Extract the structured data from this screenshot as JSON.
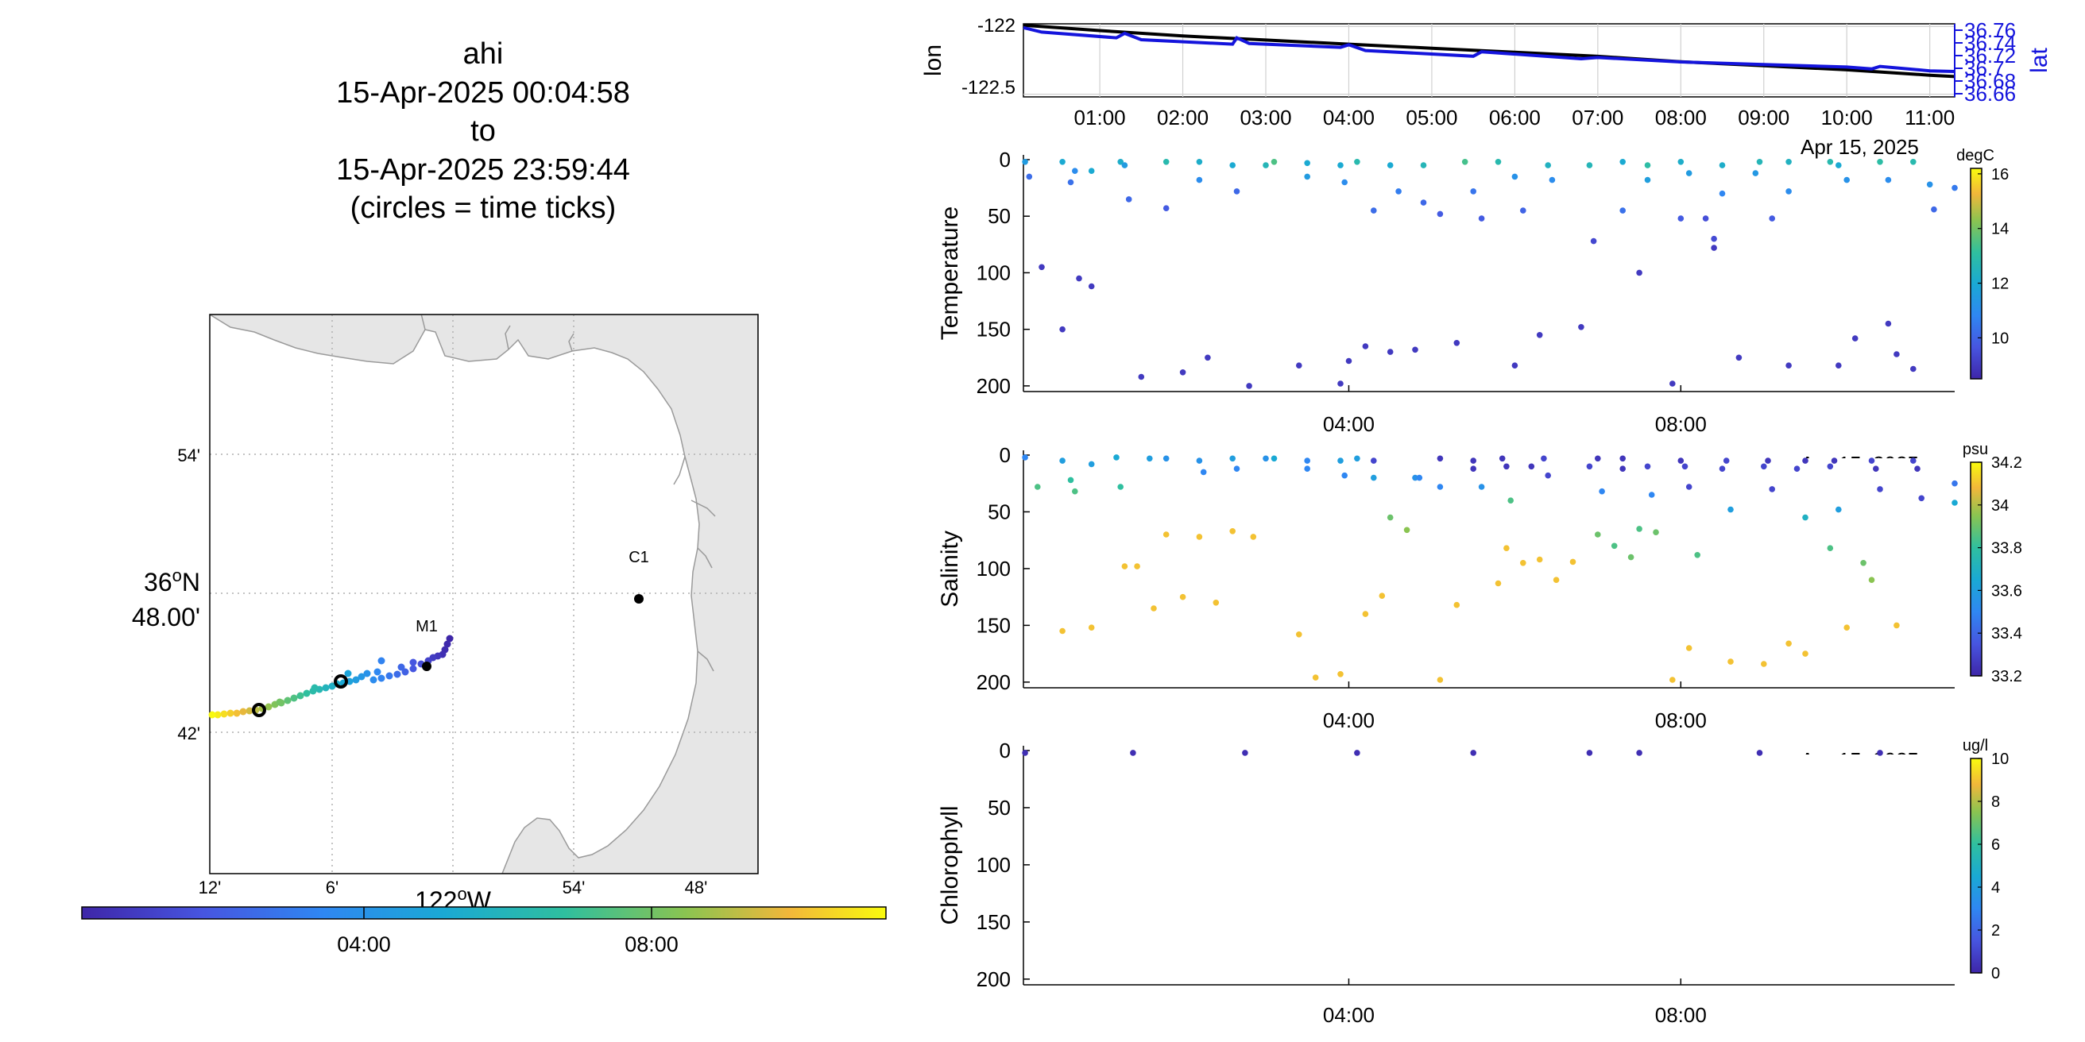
{
  "title": {
    "platform": "ahi",
    "start": "15-Apr-2025 00:04:58",
    "to": "to",
    "end": "15-Apr-2025 23:59:44",
    "note": "(circles = time ticks)"
  },
  "colors": {
    "lon_line": "#000000",
    "lat_line": "#1414dc",
    "land": "#e6e6e6",
    "coast": "#9a9a9a",
    "grid": "#b0b0b0",
    "station": "#000000"
  },
  "map": {
    "lat_ticks": [
      {
        "label": "54'",
        "lat": 36.9
      },
      {
        "label": "36°N 48.00'",
        "line1": "36",
        "sup": "o",
        "line1_end": "N",
        "line2": "48.00'",
        "lat": 36.8
      },
      {
        "label": "42'",
        "lat": 36.7
      }
    ],
    "lon_ticks": [
      {
        "label": "12'",
        "lon": -122.2
      },
      {
        "label": "6'",
        "lon": -122.1
      },
      {
        "label": "122°W",
        "main": "122",
        "sup": "o",
        "end": "W",
        "lon": -122.0
      },
      {
        "label": "54'",
        "lon": -121.9
      },
      {
        "label": "48'",
        "lon": -121.8
      }
    ],
    "stations": [
      {
        "name": "C1",
        "lat": 36.797,
        "lon": -121.847
      },
      {
        "name": "M1",
        "lat": 36.747,
        "lon": -122.022
      }
    ],
    "time_ticks": [
      "04:00",
      "08:00"
    ],
    "colorbar": {
      "range_hours": [
        0,
        24
      ],
      "ticks": [
        "04:00",
        "08:00"
      ]
    }
  },
  "chart_data": [
    {
      "type": "line",
      "title": "",
      "xlabel": "",
      "ylabel": "lon",
      "ylabel_right": "lat",
      "x_ticks": [
        "01:00",
        "02:00",
        "03:00",
        "04:00",
        "05:00",
        "06:00",
        "07:00",
        "08:00",
        "09:00",
        "10:00",
        "11:00"
      ],
      "date_label": "Apr 15, 2025",
      "xlim_hours": [
        0.08,
        11.3
      ],
      "ylim_left": [
        -122.52,
        -121.98
      ],
      "y_ticks_left": [
        -122,
        -122.5
      ],
      "ylim_right": [
        36.655,
        36.77
      ],
      "y_ticks_right": [
        36.76,
        36.74,
        36.72,
        36.7,
        36.68,
        36.66
      ],
      "series": [
        {
          "name": "",
          "axis": "left",
          "x": [
            0.08,
            1,
            2,
            3,
            4,
            5,
            6,
            7,
            8,
            9,
            10,
            11,
            11.3
          ],
          "y": [
            -121.99,
            -122.03,
            -122.07,
            -122.1,
            -122.13,
            -122.16,
            -122.19,
            -122.22,
            -122.26,
            -122.29,
            -122.32,
            -122.36,
            -122.37
          ]
        },
        {
          "name": "",
          "axis": "right",
          "x": [
            0.08,
            0.3,
            1.2,
            1.3,
            1.5,
            2.6,
            2.65,
            2.8,
            3.9,
            4.0,
            4.2,
            5.5,
            5.6,
            6.8,
            7.0,
            8.0,
            9.0,
            10.0,
            10.3,
            10.4,
            11.0,
            11.3
          ],
          "y": [
            36.764,
            36.757,
            36.748,
            36.755,
            36.745,
            36.738,
            36.748,
            36.739,
            36.733,
            36.737,
            36.728,
            36.719,
            36.726,
            36.715,
            36.717,
            36.71,
            36.706,
            36.702,
            36.699,
            36.703,
            36.696,
            36.695
          ]
        }
      ]
    },
    {
      "type": "scatter",
      "title": "",
      "ylabel": "Temperature",
      "xlabel": "",
      "x_ticks": [
        "04:00",
        "08:00"
      ],
      "date_label": "Apr 15, 2025",
      "xlim_hours": [
        0.08,
        11.3
      ],
      "ylim": [
        0,
        205
      ],
      "y_reversed": true,
      "y_ticks": [
        0,
        50,
        100,
        150,
        200
      ],
      "colorbar": {
        "label": "degC",
        "range": [
          8.5,
          16.2
        ],
        "ticks": [
          10,
          12,
          14,
          16
        ]
      },
      "points": [
        [
          0.1,
          2,
          11.5
        ],
        [
          0.15,
          15,
          10.2
        ],
        [
          0.55,
          2,
          12
        ],
        [
          0.65,
          20,
          10.3
        ],
        [
          0.7,
          10,
          11
        ],
        [
          0.9,
          10,
          12
        ],
        [
          1.25,
          2,
          12.2
        ],
        [
          1.3,
          5,
          11.5
        ],
        [
          1.35,
          35,
          10.1
        ],
        [
          1.8,
          2,
          12.8
        ],
        [
          1.8,
          43,
          9.8
        ],
        [
          2.2,
          2,
          12.2
        ],
        [
          2.2,
          18,
          11
        ],
        [
          2.6,
          5,
          12
        ],
        [
          2.65,
          28,
          10.1
        ],
        [
          3.0,
          5,
          12.6
        ],
        [
          3.1,
          2,
          13.5
        ],
        [
          3.5,
          3,
          12
        ],
        [
          3.5,
          15,
          11.5
        ],
        [
          3.9,
          5,
          12
        ],
        [
          3.95,
          20,
          11
        ],
        [
          4.1,
          2,
          12.8
        ],
        [
          4.3,
          45,
          10.2
        ],
        [
          4.5,
          5,
          12
        ],
        [
          4.6,
          28,
          10.6
        ],
        [
          4.9,
          5,
          12.6
        ],
        [
          4.9,
          38,
          10.1
        ],
        [
          5.1,
          48,
          9.8
        ],
        [
          5.4,
          2,
          13.4
        ],
        [
          5.5,
          28,
          10.4
        ],
        [
          5.6,
          52,
          9.8
        ],
        [
          5.8,
          2,
          12.8
        ],
        [
          6.0,
          15,
          11.2
        ],
        [
          6.1,
          45,
          10
        ],
        [
          6.4,
          5,
          12.4
        ],
        [
          6.45,
          18,
          11
        ],
        [
          6.9,
          5,
          12.6
        ],
        [
          6.95,
          72,
          9.3
        ],
        [
          7.3,
          2,
          12
        ],
        [
          7.3,
          45,
          10.3
        ],
        [
          7.6,
          5,
          13
        ],
        [
          7.6,
          18,
          11.6
        ],
        [
          8.0,
          2,
          12.2
        ],
        [
          8.0,
          52,
          9.8
        ],
        [
          8.1,
          12,
          11.5
        ],
        [
          8.3,
          52,
          9.5
        ],
        [
          8.4,
          70,
          9.4
        ],
        [
          8.5,
          5,
          12.2
        ],
        [
          8.5,
          30,
          10.8
        ],
        [
          8.9,
          12,
          11.4
        ],
        [
          8.95,
          2,
          12.6
        ],
        [
          9.1,
          52,
          9.8
        ],
        [
          9.3,
          2,
          12.4
        ],
        [
          9.3,
          28,
          11
        ],
        [
          9.8,
          2,
          12.8
        ],
        [
          9.9,
          5,
          12
        ],
        [
          10.0,
          18,
          11.2
        ],
        [
          10.4,
          2,
          13
        ],
        [
          10.5,
          18,
          11
        ],
        [
          10.8,
          2,
          12.8
        ],
        [
          11.0,
          22,
          11.2
        ],
        [
          11.05,
          44,
          10.1
        ],
        [
          11.3,
          25,
          10.5
        ],
        [
          0.3,
          95,
          9
        ],
        [
          0.55,
          150,
          9
        ],
        [
          0.75,
          105,
          9
        ],
        [
          0.9,
          112,
          9
        ],
        [
          1.5,
          192,
          9
        ],
        [
          2.0,
          188,
          9
        ],
        [
          2.3,
          175,
          9
        ],
        [
          2.8,
          200,
          9
        ],
        [
          3.4,
          182,
          9
        ],
        [
          3.9,
          198,
          9
        ],
        [
          4.0,
          178,
          9
        ],
        [
          4.2,
          165,
          9
        ],
        [
          4.5,
          170,
          9
        ],
        [
          4.8,
          168,
          9
        ],
        [
          5.3,
          162,
          9
        ],
        [
          6.0,
          182,
          9
        ],
        [
          6.3,
          155,
          9
        ],
        [
          6.8,
          148,
          9
        ],
        [
          7.5,
          100,
          9
        ],
        [
          7.9,
          198,
          9
        ],
        [
          8.4,
          78,
          9
        ],
        [
          8.7,
          175,
          9
        ],
        [
          9.3,
          182,
          9
        ],
        [
          9.9,
          182,
          9
        ],
        [
          10.1,
          158,
          9
        ],
        [
          10.5,
          145,
          9
        ],
        [
          10.6,
          172,
          9
        ],
        [
          10.8,
          185,
          9
        ]
      ]
    },
    {
      "type": "scatter",
      "title": "",
      "ylabel": "Salinity",
      "xlabel": "",
      "x_ticks": [
        "04:00",
        "08:00"
      ],
      "date_label": "Apr 15, 2025",
      "xlim_hours": [
        0.08,
        11.3
      ],
      "ylim": [
        0,
        205
      ],
      "y_reversed": true,
      "y_ticks": [
        0,
        50,
        100,
        150,
        200
      ],
      "colorbar": {
        "label": "psu",
        "range": [
          33.2,
          34.2
        ],
        "ticks": [
          33.2,
          33.4,
          33.6,
          33.8,
          34,
          34.2
        ]
      },
      "points": [
        [
          0.1,
          2,
          33.5
        ],
        [
          0.25,
          28,
          33.85
        ],
        [
          0.55,
          5,
          33.6
        ],
        [
          0.65,
          22,
          33.8
        ],
        [
          0.7,
          32,
          33.85
        ],
        [
          0.9,
          8,
          33.6
        ],
        [
          1.2,
          2,
          33.65
        ],
        [
          1.25,
          28,
          33.8
        ],
        [
          1.6,
          3,
          33.6
        ],
        [
          1.8,
          3,
          33.55
        ],
        [
          2.2,
          5,
          33.55
        ],
        [
          2.25,
          15,
          33.5
        ],
        [
          2.6,
          3,
          33.6
        ],
        [
          2.65,
          12,
          33.5
        ],
        [
          3.0,
          3,
          33.55
        ],
        [
          3.1,
          3,
          33.65
        ],
        [
          3.5,
          5,
          33.5
        ],
        [
          3.5,
          12,
          33.5
        ],
        [
          3.9,
          5,
          33.6
        ],
        [
          3.95,
          18,
          33.5
        ],
        [
          4.1,
          3,
          33.6
        ],
        [
          4.3,
          5,
          33.3
        ],
        [
          4.3,
          20,
          33.6
        ],
        [
          4.5,
          55,
          33.9
        ],
        [
          4.8,
          20,
          33.55
        ],
        [
          4.85,
          20,
          33.5
        ],
        [
          5.1,
          3,
          33.25
        ],
        [
          5.1,
          28,
          33.5
        ],
        [
          5.5,
          5,
          33.25
        ],
        [
          5.5,
          12,
          33.25
        ],
        [
          5.6,
          28,
          33.55
        ],
        [
          5.85,
          3,
          33.25
        ],
        [
          5.9,
          10,
          33.25
        ],
        [
          5.95,
          40,
          33.85
        ],
        [
          6.2,
          10,
          33.25
        ],
        [
          6.35,
          3,
          33.3
        ],
        [
          6.4,
          18,
          33.3
        ],
        [
          6.9,
          10,
          33.3
        ],
        [
          7.0,
          3,
          33.25
        ],
        [
          7.05,
          32,
          33.5
        ],
        [
          7.3,
          3,
          33.25
        ],
        [
          7.3,
          12,
          33.25
        ],
        [
          7.6,
          10,
          33.3
        ],
        [
          7.65,
          35,
          33.5
        ],
        [
          8.0,
          5,
          33.25
        ],
        [
          8.05,
          10,
          33.3
        ],
        [
          8.1,
          28,
          33.3
        ],
        [
          8.5,
          12,
          33.3
        ],
        [
          8.55,
          5,
          33.3
        ],
        [
          8.6,
          48,
          33.6
        ],
        [
          9.0,
          10,
          33.3
        ],
        [
          9.05,
          5,
          33.25
        ],
        [
          9.1,
          30,
          33.3
        ],
        [
          9.4,
          12,
          33.3
        ],
        [
          9.5,
          5,
          33.25
        ],
        [
          9.5,
          55,
          33.7
        ],
        [
          9.8,
          10,
          33.3
        ],
        [
          9.85,
          5,
          33.25
        ],
        [
          9.9,
          48,
          33.6
        ],
        [
          10.3,
          5,
          33.3
        ],
        [
          10.35,
          12,
          33.25
        ],
        [
          10.4,
          30,
          33.3
        ],
        [
          10.8,
          5,
          33.3
        ],
        [
          10.85,
          12,
          33.25
        ],
        [
          10.9,
          38,
          33.3
        ],
        [
          11.3,
          25,
          33.45
        ],
        [
          11.3,
          42,
          33.65
        ],
        [
          0.55,
          155,
          34.1
        ],
        [
          0.9,
          152,
          34.1
        ],
        [
          1.3,
          98,
          34.1
        ],
        [
          1.45,
          98,
          34.1
        ],
        [
          1.65,
          135,
          34.1
        ],
        [
          1.8,
          70,
          34.1
        ],
        [
          2.0,
          125,
          34.1
        ],
        [
          2.2,
          72,
          34.1
        ],
        [
          2.4,
          130,
          34.1
        ],
        [
          2.6,
          67,
          34.1
        ],
        [
          2.85,
          72,
          34.1
        ],
        [
          3.4,
          158,
          34.1
        ],
        [
          3.6,
          196,
          34.1
        ],
        [
          3.9,
          193,
          34.1
        ],
        [
          4.2,
          140,
          34.1
        ],
        [
          4.4,
          124,
          34.1
        ],
        [
          4.7,
          66,
          33.95
        ],
        [
          5.1,
          198,
          34.1
        ],
        [
          5.3,
          132,
          34.1
        ],
        [
          5.8,
          113,
          34.1
        ],
        [
          5.9,
          82,
          34.1
        ],
        [
          6.1,
          95,
          34.1
        ],
        [
          6.3,
          92,
          34.1
        ],
        [
          6.5,
          110,
          34.1
        ],
        [
          6.7,
          94,
          34.1
        ],
        [
          7.0,
          70,
          33.9
        ],
        [
          7.2,
          80,
          33.85
        ],
        [
          7.4,
          90,
          33.9
        ],
        [
          7.5,
          65,
          33.85
        ],
        [
          7.7,
          68,
          33.9
        ],
        [
          7.9,
          198,
          34.1
        ],
        [
          8.1,
          170,
          34.1
        ],
        [
          8.2,
          88,
          33.85
        ],
        [
          8.6,
          182,
          34.1
        ],
        [
          9.0,
          184,
          34.1
        ],
        [
          9.3,
          166,
          34.1
        ],
        [
          9.5,
          175,
          34.1
        ],
        [
          9.8,
          82,
          33.85
        ],
        [
          10.0,
          152,
          34.1
        ],
        [
          10.2,
          95,
          33.9
        ],
        [
          10.3,
          110,
          33.95
        ],
        [
          10.6,
          150,
          34.1
        ]
      ]
    },
    {
      "type": "scatter",
      "title": "",
      "ylabel": "Chlorophyll",
      "xlabel": "",
      "x_ticks": [
        "04:00",
        "08:00"
      ],
      "date_label": "Apr 15, 2025",
      "xlim_hours": [
        0.08,
        11.3
      ],
      "ylim": [
        0,
        205
      ],
      "y_reversed": true,
      "y_ticks": [
        0,
        50,
        100,
        150,
        200
      ],
      "colorbar": {
        "label": "ug/l",
        "range": [
          0,
          10
        ],
        "ticks": [
          0,
          2,
          4,
          6,
          8,
          10
        ]
      },
      "points": [
        [
          0.1,
          2,
          0.3
        ],
        [
          1.4,
          2,
          0.3
        ],
        [
          2.75,
          2,
          0.3
        ],
        [
          4.1,
          2,
          0.3
        ],
        [
          5.5,
          2,
          0.3
        ],
        [
          6.9,
          2,
          0.3
        ],
        [
          7.5,
          2,
          0.3
        ],
        [
          8.95,
          2,
          0.3
        ],
        [
          10.4,
          2,
          0.3
        ]
      ]
    }
  ]
}
